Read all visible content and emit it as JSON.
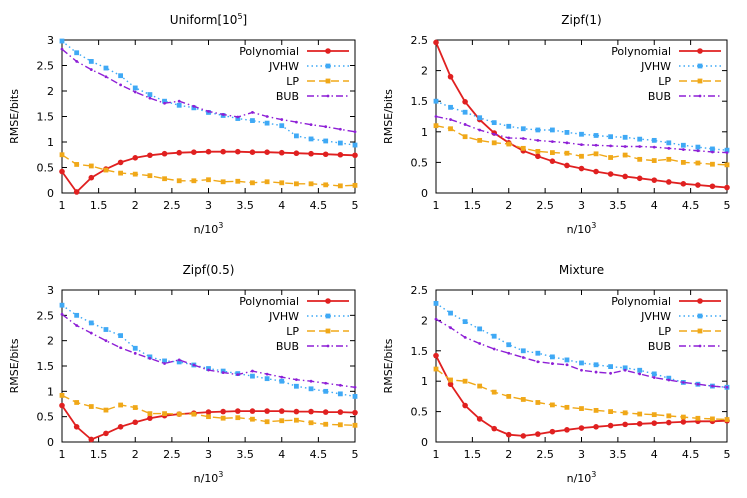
{
  "colors": {
    "Polynomial": "#e02020",
    "JVHW": "#3fa9f5",
    "LP": "#f0a818",
    "BUB": "#8e1fd6"
  },
  "chart_data": [
    {
      "type": "line",
      "title": "Uniform[10^5]",
      "title_base": "Uniform[10",
      "title_sup": "5",
      "title_tail": "]",
      "xlabel_base": "n/10",
      "xlabel_sup": "3",
      "ylabel": "RMSE/bits",
      "xlim": [
        1,
        5
      ],
      "ylim": [
        0,
        3
      ],
      "xticks": [
        "1",
        "1.5",
        "2",
        "2.5",
        "3",
        "3.5",
        "4",
        "4.5",
        "5"
      ],
      "yticks": [
        "0",
        "0.5",
        "1",
        "1.5",
        "2",
        "2.5",
        "3"
      ],
      "x": [
        1.0,
        1.2,
        1.4,
        1.6,
        1.8,
        2.0,
        2.2,
        2.4,
        2.6,
        2.8,
        3.0,
        3.2,
        3.4,
        3.6,
        3.8,
        4.0,
        4.2,
        4.4,
        4.6,
        4.8,
        5.0
      ],
      "series": [
        {
          "name": "Polynomial",
          "values": [
            0.42,
            0.02,
            0.3,
            0.47,
            0.6,
            0.69,
            0.74,
            0.77,
            0.79,
            0.8,
            0.81,
            0.81,
            0.81,
            0.8,
            0.8,
            0.79,
            0.78,
            0.77,
            0.76,
            0.75,
            0.74
          ]
        },
        {
          "name": "JVHW",
          "values": [
            2.98,
            2.75,
            2.58,
            2.45,
            2.3,
            2.06,
            1.93,
            1.8,
            1.72,
            1.67,
            1.58,
            1.52,
            1.46,
            1.42,
            1.37,
            1.32,
            1.12,
            1.06,
            1.02,
            0.98,
            0.94
          ]
        },
        {
          "name": "LP",
          "values": [
            0.75,
            0.56,
            0.53,
            0.45,
            0.39,
            0.37,
            0.34,
            0.28,
            0.24,
            0.24,
            0.26,
            0.22,
            0.23,
            0.2,
            0.22,
            0.2,
            0.18,
            0.18,
            0.16,
            0.14,
            0.15
          ]
        },
        {
          "name": "BUB",
          "values": [
            2.82,
            2.58,
            2.42,
            2.28,
            2.12,
            1.98,
            1.86,
            1.76,
            1.8,
            1.7,
            1.6,
            1.54,
            1.49,
            1.58,
            1.5,
            1.44,
            1.39,
            1.34,
            1.3,
            1.25,
            1.2
          ]
        }
      ]
    },
    {
      "type": "line",
      "title": "Zipf(1)",
      "title_base": "Zipf(1)",
      "title_sup": "",
      "title_tail": "",
      "xlabel_base": "n/10",
      "xlabel_sup": "3",
      "ylabel": "RMSE/bits",
      "xlim": [
        1,
        5
      ],
      "ylim": [
        0,
        2.5
      ],
      "xticks": [
        "1",
        "1.5",
        "2",
        "2.5",
        "3",
        "3.5",
        "4",
        "4.5",
        "5"
      ],
      "yticks": [
        "0",
        "0.5",
        "1",
        "1.5",
        "2",
        "2.5"
      ],
      "x": [
        1.0,
        1.2,
        1.4,
        1.6,
        1.8,
        2.0,
        2.2,
        2.4,
        2.6,
        2.8,
        3.0,
        3.2,
        3.4,
        3.6,
        3.8,
        4.0,
        4.2,
        4.4,
        4.6,
        4.8,
        5.0
      ],
      "series": [
        {
          "name": "Polynomial",
          "values": [
            2.46,
            1.9,
            1.49,
            1.2,
            0.98,
            0.82,
            0.69,
            0.6,
            0.52,
            0.45,
            0.4,
            0.35,
            0.31,
            0.27,
            0.24,
            0.21,
            0.18,
            0.15,
            0.13,
            0.11,
            0.09
          ]
        },
        {
          "name": "JVHW",
          "values": [
            1.5,
            1.4,
            1.32,
            1.23,
            1.15,
            1.09,
            1.05,
            1.03,
            1.03,
            0.99,
            0.96,
            0.94,
            0.92,
            0.91,
            0.88,
            0.86,
            0.82,
            0.78,
            0.75,
            0.72,
            0.7
          ]
        },
        {
          "name": "LP",
          "values": [
            1.1,
            1.05,
            0.92,
            0.86,
            0.82,
            0.8,
            0.73,
            0.68,
            0.66,
            0.65,
            0.6,
            0.64,
            0.58,
            0.62,
            0.55,
            0.53,
            0.55,
            0.5,
            0.49,
            0.47,
            0.46
          ]
        },
        {
          "name": "BUB",
          "values": [
            1.25,
            1.2,
            1.12,
            1.03,
            0.96,
            0.9,
            0.89,
            0.86,
            0.84,
            0.82,
            0.79,
            0.78,
            0.77,
            0.76,
            0.76,
            0.75,
            0.73,
            0.71,
            0.69,
            0.67,
            0.66
          ]
        }
      ]
    },
    {
      "type": "line",
      "title": "Zipf(0.5)",
      "title_base": "Zipf(0.5)",
      "title_sup": "",
      "title_tail": "",
      "xlabel_base": "n/10",
      "xlabel_sup": "3",
      "ylabel": "RMSE/bits",
      "xlim": [
        1,
        5
      ],
      "ylim": [
        0,
        3
      ],
      "xticks": [
        "1",
        "1.5",
        "2",
        "2.5",
        "3",
        "3.5",
        "4",
        "4.5",
        "5"
      ],
      "yticks": [
        "0",
        "0.5",
        "1",
        "1.5",
        "2",
        "2.5",
        "3"
      ],
      "x": [
        1.0,
        1.2,
        1.4,
        1.6,
        1.8,
        2.0,
        2.2,
        2.4,
        2.6,
        2.8,
        3.0,
        3.2,
        3.4,
        3.6,
        3.8,
        4.0,
        4.2,
        4.4,
        4.6,
        4.8,
        5.0
      ],
      "series": [
        {
          "name": "Polynomial",
          "values": [
            0.72,
            0.3,
            0.05,
            0.17,
            0.3,
            0.39,
            0.47,
            0.52,
            0.55,
            0.57,
            0.59,
            0.6,
            0.61,
            0.61,
            0.61,
            0.61,
            0.6,
            0.6,
            0.59,
            0.59,
            0.58
          ]
        },
        {
          "name": "JVHW",
          "values": [
            2.7,
            2.5,
            2.35,
            2.22,
            2.1,
            1.85,
            1.68,
            1.6,
            1.58,
            1.52,
            1.45,
            1.4,
            1.35,
            1.3,
            1.25,
            1.2,
            1.1,
            1.05,
            1.0,
            0.95,
            0.9
          ]
        },
        {
          "name": "LP",
          "values": [
            0.92,
            0.78,
            0.7,
            0.63,
            0.73,
            0.68,
            0.56,
            0.56,
            0.55,
            0.55,
            0.5,
            0.47,
            0.48,
            0.45,
            0.4,
            0.42,
            0.43,
            0.38,
            0.35,
            0.34,
            0.33
          ]
        },
        {
          "name": "BUB",
          "values": [
            2.52,
            2.3,
            2.15,
            2.0,
            1.86,
            1.75,
            1.65,
            1.55,
            1.62,
            1.52,
            1.42,
            1.37,
            1.33,
            1.4,
            1.34,
            1.28,
            1.23,
            1.2,
            1.16,
            1.12,
            1.08
          ]
        }
      ]
    },
    {
      "type": "line",
      "title": "Mixture",
      "title_base": "Mixture",
      "title_sup": "",
      "title_tail": "",
      "xlabel_base": "n/10",
      "xlabel_sup": "3",
      "ylabel": "RMSE/bits",
      "xlim": [
        1,
        5
      ],
      "ylim": [
        0,
        2.5
      ],
      "xticks": [
        "1",
        "1.5",
        "2",
        "2.5",
        "3",
        "3.5",
        "4",
        "4.5",
        "5"
      ],
      "yticks": [
        "0",
        "0.5",
        "1",
        "1.5",
        "2",
        "2.5"
      ],
      "x": [
        1.0,
        1.2,
        1.4,
        1.6,
        1.8,
        2.0,
        2.2,
        2.4,
        2.6,
        2.8,
        3.0,
        3.2,
        3.4,
        3.6,
        3.8,
        4.0,
        4.2,
        4.4,
        4.6,
        4.8,
        5.0
      ],
      "series": [
        {
          "name": "Polynomial",
          "values": [
            1.42,
            0.95,
            0.6,
            0.38,
            0.22,
            0.12,
            0.1,
            0.13,
            0.17,
            0.2,
            0.23,
            0.25,
            0.27,
            0.29,
            0.3,
            0.31,
            0.32,
            0.33,
            0.34,
            0.34,
            0.35
          ]
        },
        {
          "name": "JVHW",
          "values": [
            2.28,
            2.12,
            1.98,
            1.86,
            1.74,
            1.6,
            1.5,
            1.46,
            1.4,
            1.35,
            1.3,
            1.27,
            1.24,
            1.22,
            1.18,
            1.12,
            1.05,
            0.98,
            0.95,
            0.92,
            0.9
          ]
        },
        {
          "name": "LP",
          "values": [
            1.2,
            1.02,
            1.0,
            0.92,
            0.82,
            0.75,
            0.7,
            0.65,
            0.61,
            0.57,
            0.55,
            0.52,
            0.5,
            0.48,
            0.46,
            0.45,
            0.43,
            0.41,
            0.39,
            0.38,
            0.37
          ]
        },
        {
          "name": "BUB",
          "values": [
            2.02,
            1.88,
            1.72,
            1.62,
            1.53,
            1.46,
            1.39,
            1.32,
            1.29,
            1.27,
            1.18,
            1.15,
            1.13,
            1.18,
            1.12,
            1.06,
            1.02,
            0.98,
            0.95,
            0.92,
            0.9
          ]
        }
      ]
    }
  ]
}
